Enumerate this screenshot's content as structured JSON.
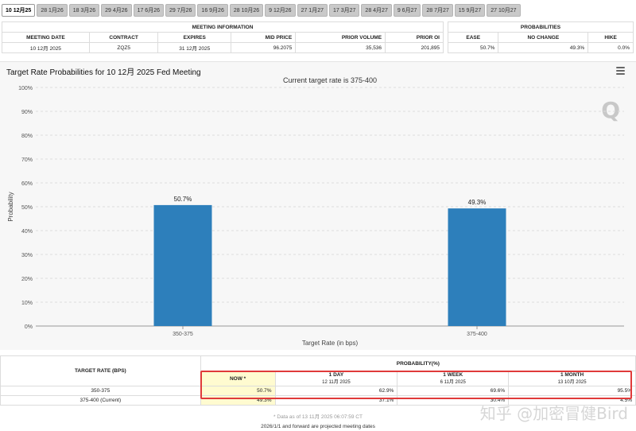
{
  "tabs": [
    "10 12月25",
    "28 1月26",
    "18 3月26",
    "29 4月26",
    "17 6月26",
    "29 7月26",
    "16 9月26",
    "28 10月26",
    "9 12月26",
    "27 1月27",
    "17 3月27",
    "28 4月27",
    "9 6月27",
    "28 7月27",
    "15 9月27",
    "27 10月27"
  ],
  "meeting_info": {
    "header": "MEETING INFORMATION",
    "columns": [
      "MEETING DATE",
      "CONTRACT",
      "EXPIRES",
      "MID PRICE",
      "PRIOR VOLUME",
      "PRIOR OI"
    ],
    "row": [
      "10 12月 2025",
      "ZQZ5",
      "31 12月 2025",
      "96.2075",
      "35,536",
      "201,895"
    ]
  },
  "probabilities": {
    "header": "PROBABILITIES",
    "columns": [
      "EASE",
      "NO CHANGE",
      "HIKE"
    ],
    "row": [
      "50.7%",
      "49.3%",
      "0.0%"
    ]
  },
  "chart_title": "Target Rate Probabilities for 10 12月 2025 Fed Meeting",
  "chart_data": {
    "type": "bar",
    "title": "Current target rate is 375-400",
    "categories": [
      "350-375",
      "375-400"
    ],
    "values": [
      50.7,
      49.3
    ],
    "value_labels": [
      "50.7%",
      "49.3%"
    ],
    "xlabel": "Target Rate (in bps)",
    "ylabel": "Probability",
    "ylim": [
      0,
      100
    ],
    "yticks": [
      "0%",
      "10%",
      "20%",
      "30%",
      "40%",
      "50%",
      "60%",
      "70%",
      "80%",
      "90%",
      "100%"
    ],
    "grid": true,
    "bar_color": "#2d7fbb"
  },
  "prob_table": {
    "target_header": "TARGET RATE (BPS)",
    "prob_header": "PROBABILITY(%)",
    "periods": [
      {
        "label": "NOW *",
        "date": ""
      },
      {
        "label": "1 DAY",
        "date": "12 11月 2025"
      },
      {
        "label": "1 WEEK",
        "date": "6 11月 2025"
      },
      {
        "label": "1 MONTH",
        "date": "13 10月 2025"
      }
    ],
    "rows": [
      {
        "rate": "350-375",
        "values": [
          "50.7%",
          "62.9%",
          "69.6%",
          "95.5%"
        ]
      },
      {
        "rate": "375-400 (Current)",
        "values": [
          "49.3%",
          "37.1%",
          "30.4%",
          "4.5%"
        ]
      }
    ]
  },
  "note": "* Data as of 13 11月 2025 06:07:59 CT",
  "footer": "2026/1/1 and forward are projected meeting dates",
  "watermark": "知乎 @加密冒健Bird"
}
